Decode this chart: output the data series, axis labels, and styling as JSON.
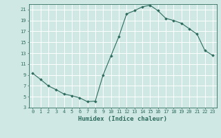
{
  "x": [
    0,
    1,
    2,
    3,
    4,
    5,
    6,
    7,
    8,
    9,
    10,
    11,
    12,
    13,
    14,
    15,
    16,
    17,
    18,
    19,
    20,
    21,
    22,
    23
  ],
  "y": [
    9.3,
    8.2,
    7.0,
    6.3,
    5.5,
    5.2,
    4.8,
    4.1,
    4.2,
    9.0,
    12.5,
    16.0,
    20.2,
    20.8,
    21.5,
    21.8,
    20.8,
    19.4,
    19.0,
    18.5,
    17.5,
    16.5,
    13.5,
    12.6
  ],
  "xlabel": "Humidex (Indice chaleur)",
  "xlim": [
    -0.5,
    23.5
  ],
  "ylim": [
    3,
    22
  ],
  "yticks": [
    3,
    5,
    7,
    9,
    11,
    13,
    15,
    17,
    19,
    21
  ],
  "xticks": [
    0,
    1,
    2,
    3,
    4,
    5,
    6,
    7,
    8,
    9,
    10,
    11,
    12,
    13,
    14,
    15,
    16,
    17,
    18,
    19,
    20,
    21,
    22,
    23
  ],
  "line_color": "#2e6b5e",
  "marker": "D",
  "marker_size": 1.8,
  "bg_color": "#cfe8e4",
  "grid_color": "#ffffff",
  "axis_fontsize": 6,
  "tick_fontsize": 5,
  "xlabel_fontsize": 6.5,
  "linewidth": 0.8
}
